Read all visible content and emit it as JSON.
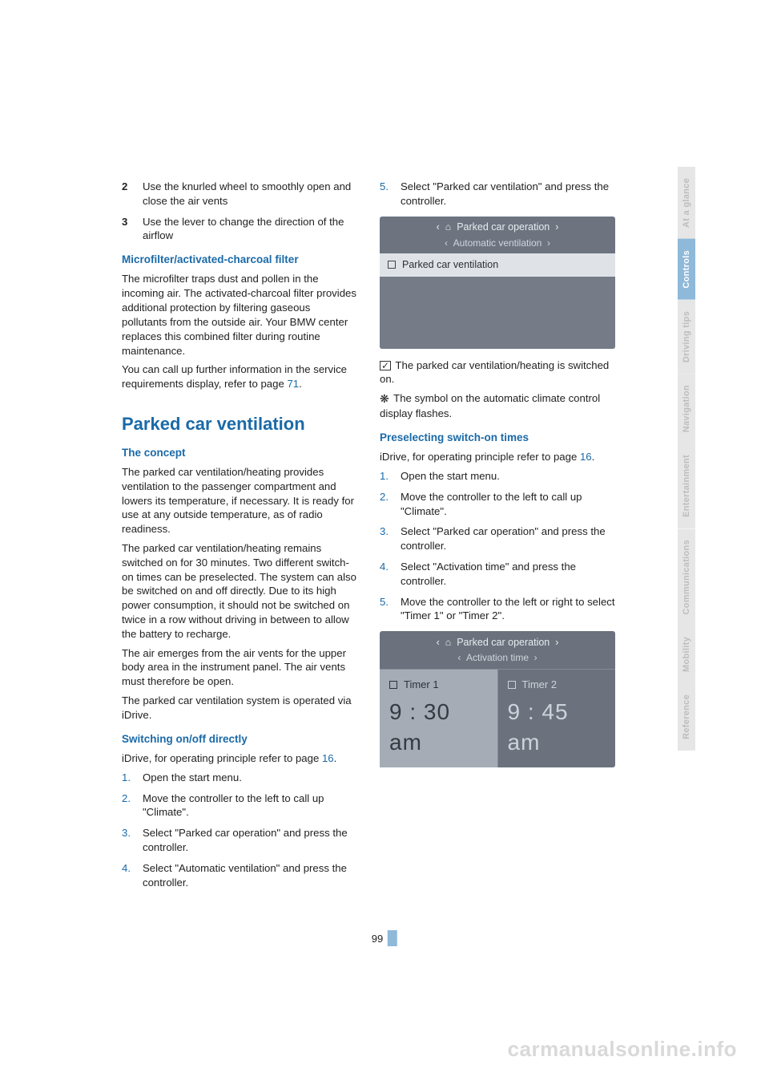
{
  "page_number": "99",
  "watermark": "carmanualsonline.info",
  "colors": {
    "link_blue": "#1a6aa8",
    "tab_active_bg": "#8fb9d9",
    "tab_inactive_bg": "#e6e6e6",
    "tab_active_text": "#ffffff",
    "tab_inactive_text": "#bdbdbd",
    "idrive_bg": "#6d7480"
  },
  "tabs": [
    {
      "label": "At a glance",
      "active": false
    },
    {
      "label": "Controls",
      "active": true
    },
    {
      "label": "Driving tips",
      "active": false
    },
    {
      "label": "Navigation",
      "active": false
    },
    {
      "label": "Entertainment",
      "active": false
    },
    {
      "label": "Communications",
      "active": false
    },
    {
      "label": "Mobility",
      "active": false
    },
    {
      "label": "Reference",
      "active": false
    }
  ],
  "left": {
    "list1": [
      {
        "n": "2",
        "t": "Use the knurled wheel to smoothly open and close the air vents"
      },
      {
        "n": "3",
        "t": "Use the lever to change the direction of the airflow"
      }
    ],
    "h_filter": "Microfilter/activated-charcoal filter",
    "p_filter1": "The microfilter traps dust and pollen in the incoming air. The activated-charcoal filter provides additional protection by filtering gaseous pollutants from the outside air. Your BMW center replaces this combined filter during routine maintenance.",
    "p_filter2_a": "You can call up further information in the service requirements display, refer to page ",
    "p_filter2_ref": "71",
    "p_filter2_b": ".",
    "h_pcv": "Parked car ventilation",
    "h_concept": "The concept",
    "p_concept1": "The parked car ventilation/heating provides ventilation to the passenger compartment and lowers its temperature, if necessary. It is ready for use at any outside temperature, as of radio readiness.",
    "p_concept2": "The parked car ventilation/heating remains switched on for 30 minutes. Two different switch-on times can be preselected. The system can also be switched on and off directly. Due to its high power consumption, it should not be switched on twice in a row without driving in between to allow the battery to recharge.",
    "p_concept3": "The air emerges from the air vents for the upper body area in the instrument panel. The air vents must therefore be open.",
    "p_concept4": "The parked car ventilation system is operated via iDrive.",
    "h_switch": "Switching on/off directly",
    "p_switch_a": "iDrive, for operating principle refer to page ",
    "p_switch_ref": "16",
    "p_switch_b": ".",
    "list2": [
      {
        "n": "1.",
        "t": "Open the start menu."
      },
      {
        "n": "2.",
        "t": "Move the controller to the left to call up \"Climate\"."
      },
      {
        "n": "3.",
        "t": "Select \"Parked car operation\" and press the controller."
      },
      {
        "n": "4.",
        "t": "Select \"Automatic ventilation\" and press the controller."
      }
    ]
  },
  "right": {
    "list1": [
      {
        "n": "5.",
        "t": "Select \"Parked car ventilation\" and press the controller."
      }
    ],
    "idrive1": {
      "title": "Parked car operation",
      "sub": "Automatic ventilation",
      "row": "Parked car ventilation"
    },
    "p_after1_a": " The parked car ventilation/heating is switched on.",
    "p_after1_b": " The symbol on the automatic climate control display flashes.",
    "h_presel": "Preselecting switch-on times",
    "p_presel_a": "iDrive, for operating principle refer to page ",
    "p_presel_ref": "16",
    "p_presel_b": ".",
    "list2": [
      {
        "n": "1.",
        "t": "Open the start menu."
      },
      {
        "n": "2.",
        "t": "Move the controller to the left to call up \"Climate\"."
      },
      {
        "n": "3.",
        "t": "Select \"Parked car operation\" and press the controller."
      },
      {
        "n": "4.",
        "t": "Select \"Activation time\" and press the controller."
      },
      {
        "n": "5.",
        "t": "Move the controller to the left or right to select \"Timer 1\" or \"Timer 2\"."
      }
    ],
    "idrive2": {
      "title": "Parked car operation",
      "sub": "Activation time",
      "timer1_label": "Timer 1",
      "timer1_time": "9 : 30 am",
      "timer2_label": "Timer 2",
      "timer2_time": "9 : 45 am"
    }
  }
}
